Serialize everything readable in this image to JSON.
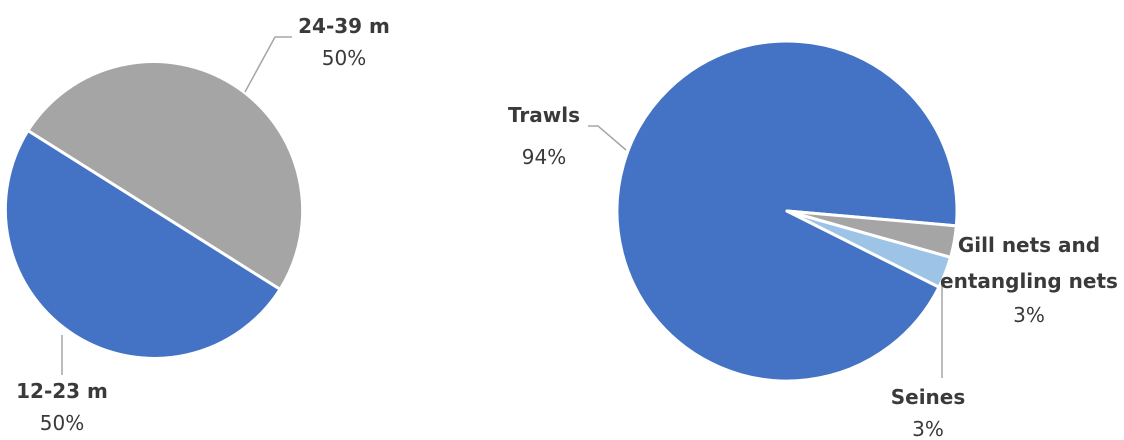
{
  "chart_data": [
    {
      "type": "pie",
      "title": "",
      "slices": [
        {
          "label": "24-39 m",
          "value": 50,
          "display": "50%",
          "color": "#a5a5a5"
        },
        {
          "label": "12-23 m",
          "value": 50,
          "display": "50%",
          "color": "#4472c4"
        }
      ]
    },
    {
      "type": "pie",
      "title": "",
      "slices": [
        {
          "label": "Trawls",
          "value": 94,
          "display": "94%",
          "color": "#4472c4"
        },
        {
          "label": "Seines",
          "value": 3,
          "display": "3%",
          "color": "#9dc3e6"
        },
        {
          "label": "Gill nets and entangling nets",
          "value": 3,
          "display": "3%",
          "color": "#a5a5a5"
        }
      ]
    }
  ]
}
